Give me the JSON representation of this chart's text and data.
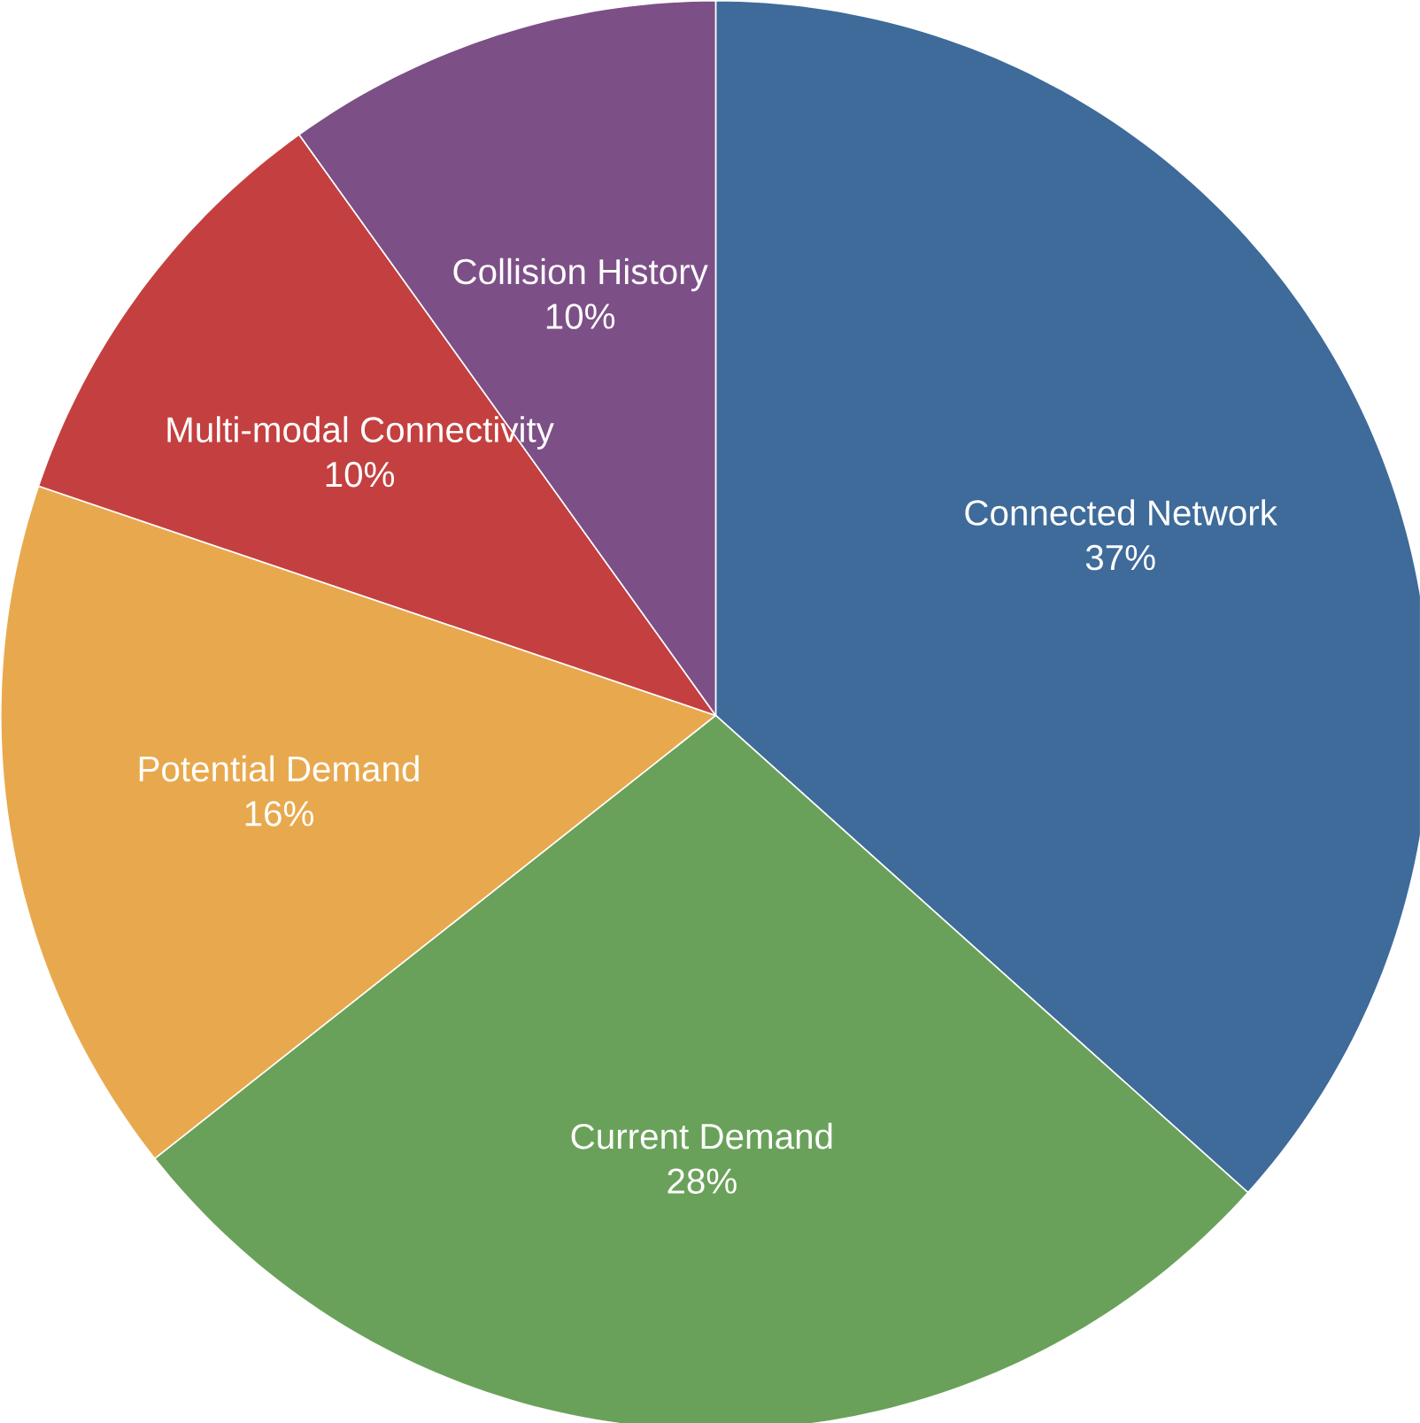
{
  "chart_data": {
    "type": "pie",
    "categories": [
      "Connected Network",
      "Current Demand",
      "Potential Demand",
      "Multi-modal Connectivity",
      "Collision History"
    ],
    "values": [
      37,
      28,
      16,
      10,
      10
    ],
    "value_labels": [
      "37%",
      "28%",
      "16%",
      "10%",
      "10%"
    ],
    "colors": [
      "#3e6b9a",
      "#6aa15a",
      "#e8a94e",
      "#c44040",
      "#7d4f87"
    ]
  }
}
